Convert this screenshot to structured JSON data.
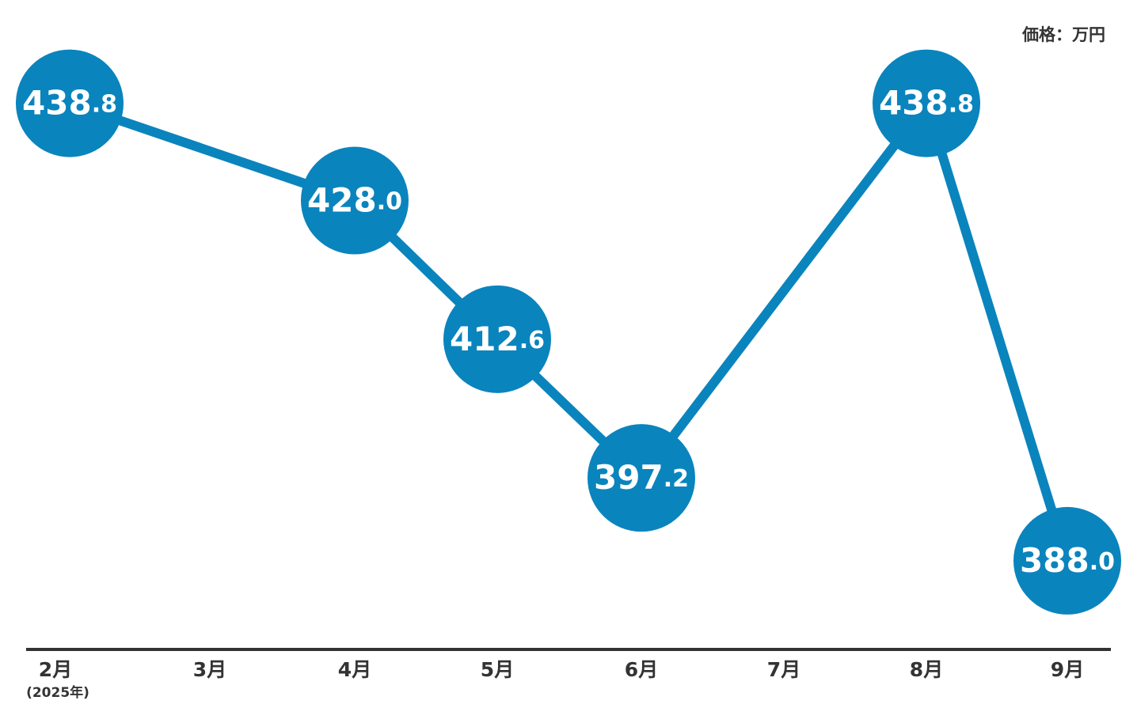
{
  "chart_data": {
    "type": "line",
    "unit_label": "価格：万円",
    "categories": [
      "2月",
      "3月",
      "4月",
      "5月",
      "6月",
      "7月",
      "8月",
      "9月"
    ],
    "first_category_note": "(2025年)",
    "values": [
      438.8,
      null,
      428.0,
      412.6,
      397.2,
      null,
      438.8,
      388.0
    ],
    "value_labels": [
      "438.8",
      null,
      "428.0",
      "412.6",
      "397.2",
      null,
      "438.8",
      "388.0"
    ],
    "color": "#0a84bd",
    "ylim": [
      380,
      445
    ]
  }
}
